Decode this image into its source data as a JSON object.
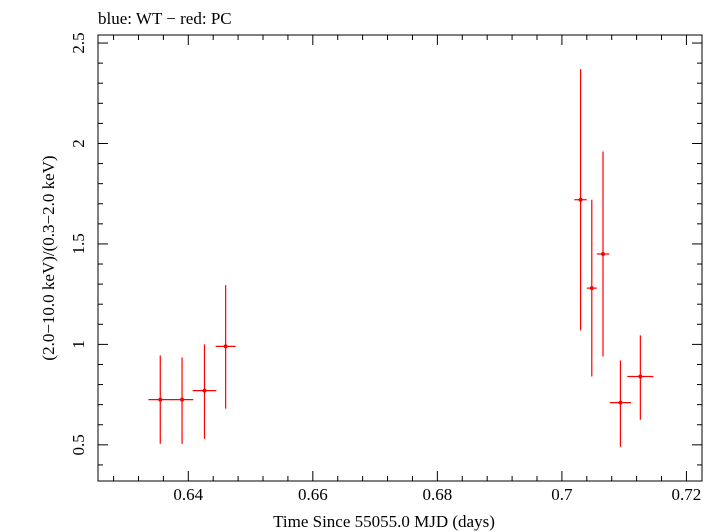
{
  "chart_data": {
    "type": "scatter",
    "title": "blue: WT − red: PC",
    "xlabel": "Time Since 55055.0 MJD (days)",
    "ylabel": "(2.0−10.0 keV)/(0.3−2.0 keV)",
    "xlim": [
      0.6255,
      0.7225
    ],
    "ylim": [
      0.32,
      2.54
    ],
    "x_ticks": [
      0.64,
      0.66,
      0.68,
      0.7,
      0.72
    ],
    "x_tick_labels": [
      "0.64",
      "0.66",
      "0.68",
      "0.7",
      "0.72"
    ],
    "y_ticks": [
      0.5,
      1,
      1.5,
      2,
      2.5
    ],
    "y_tick_labels": [
      "0.5",
      "1",
      "1.5",
      "2",
      "2.5"
    ],
    "grid": false,
    "series": [
      {
        "name": "PC",
        "color": "#ff0000",
        "points": [
          {
            "x": 0.6355,
            "xerr": 0.0019,
            "y": 0.725,
            "ylo": 0.505,
            "yhi": 0.945
          },
          {
            "x": 0.639,
            "xerr": 0.0018,
            "y": 0.725,
            "ylo": 0.505,
            "yhi": 0.935
          },
          {
            "x": 0.6426,
            "xerr": 0.0019,
            "y": 0.77,
            "ylo": 0.53,
            "yhi": 1.0
          },
          {
            "x": 0.646,
            "xerr": 0.0016,
            "y": 0.99,
            "ylo": 0.68,
            "yhi": 1.295
          },
          {
            "x": 0.703,
            "xerr": 0.001,
            "y": 1.72,
            "ylo": 1.07,
            "yhi": 2.37
          },
          {
            "x": 0.7048,
            "xerr": 0.0008,
            "y": 1.28,
            "ylo": 0.84,
            "yhi": 1.72
          },
          {
            "x": 0.7066,
            "xerr": 0.001,
            "y": 1.45,
            "ylo": 0.94,
            "yhi": 1.96
          },
          {
            "x": 0.7094,
            "xerr": 0.0017,
            "y": 0.71,
            "ylo": 0.49,
            "yhi": 0.92
          },
          {
            "x": 0.7126,
            "xerr": 0.0021,
            "y": 0.84,
            "ylo": 0.625,
            "yhi": 1.045
          }
        ]
      }
    ]
  }
}
